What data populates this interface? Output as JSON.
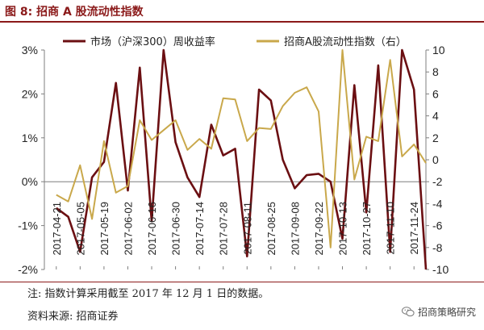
{
  "figure": {
    "title": "图 8:  招商 A 股流动性指数",
    "note": "注:  指数计算采用截至 2017 年 12 月 1 日的数据。",
    "source": "资料来源:  招商证券",
    "brand": "招商策略研究",
    "brand_icon": "wechat-icon"
  },
  "colors": {
    "series1": "#6b0f12",
    "series2": "#c9a84b",
    "title": "#8b1a1a",
    "axis": "#7f7f7f"
  },
  "chart_data": {
    "type": "line",
    "title": "",
    "legend_position": "top",
    "grid": false,
    "x_ticks": [
      "2017-04-21",
      "2017-05-05",
      "2017-05-19",
      "2017-06-02",
      "2017-06-16",
      "2017-06-30",
      "2017-07-14",
      "2017-07-28",
      "2017-08-11",
      "2017-08-25",
      "2017-09-08",
      "2017-09-22",
      "2017-10-13",
      "2017-10-27",
      "2017-11-10",
      "2017-11-24"
    ],
    "left_axis": {
      "ticks": [
        "3%",
        "2%",
        "1%",
        "0%",
        "-1%",
        "-2%"
      ],
      "ylim": [
        -2,
        3
      ]
    },
    "right_axis": {
      "ticks": [
        "10",
        "8",
        "6",
        "4",
        "2",
        "0",
        "-2",
        "-4",
        "-6",
        "-8",
        "-10"
      ],
      "ylim": [
        -10,
        10
      ]
    },
    "series": [
      {
        "name": "市场（沪深300）周收益率",
        "axis": "left",
        "x": [
          0,
          0.5,
          1,
          1.5,
          2,
          2.5,
          3,
          3.5,
          4,
          4.5,
          5,
          5.5,
          6,
          6.5,
          7,
          7.5,
          8,
          8.5,
          9,
          9.5,
          10,
          10.5,
          11,
          11.5,
          12,
          12.5,
          13,
          13.5,
          14,
          14.5,
          15,
          15.5
        ],
        "values": [
          -0.6,
          -0.8,
          -1.6,
          0.1,
          0.45,
          2.25,
          -0.2,
          2.6,
          -0.9,
          3.0,
          0.9,
          0.1,
          -0.35,
          1.3,
          0.6,
          0.75,
          -1.7,
          2.1,
          1.85,
          0.5,
          -0.15,
          0.15,
          0.18,
          0.0,
          -1.3,
          2.2,
          -0.7,
          2.65,
          -1.6,
          3.0,
          2.1,
          -2.0
        ]
      },
      {
        "name": "招商A股流动性指数（右）",
        "axis": "right",
        "x": [
          0,
          0.5,
          1,
          1.5,
          2,
          2.5,
          3,
          3.5,
          4,
          4.5,
          5,
          5.5,
          6,
          6.5,
          7,
          7.5,
          8,
          8.5,
          9,
          9.5,
          10,
          10.5,
          11,
          11.5,
          12,
          12.5,
          13,
          13.5,
          14,
          14.5,
          15,
          15.5
        ],
        "values": [
          -3.2,
          -3.8,
          -0.5,
          -5.4,
          1.7,
          -3.0,
          -2.4,
          3.6,
          1.8,
          2.7,
          3.6,
          0.9,
          1.9,
          1.0,
          5.6,
          5.5,
          1.7,
          2.9,
          2.8,
          4.9,
          6.1,
          6.6,
          4.4,
          -8.0,
          10.0,
          -1.8,
          2.1,
          1.7,
          9.1,
          0.3,
          1.4,
          -0.3
        ]
      }
    ]
  }
}
